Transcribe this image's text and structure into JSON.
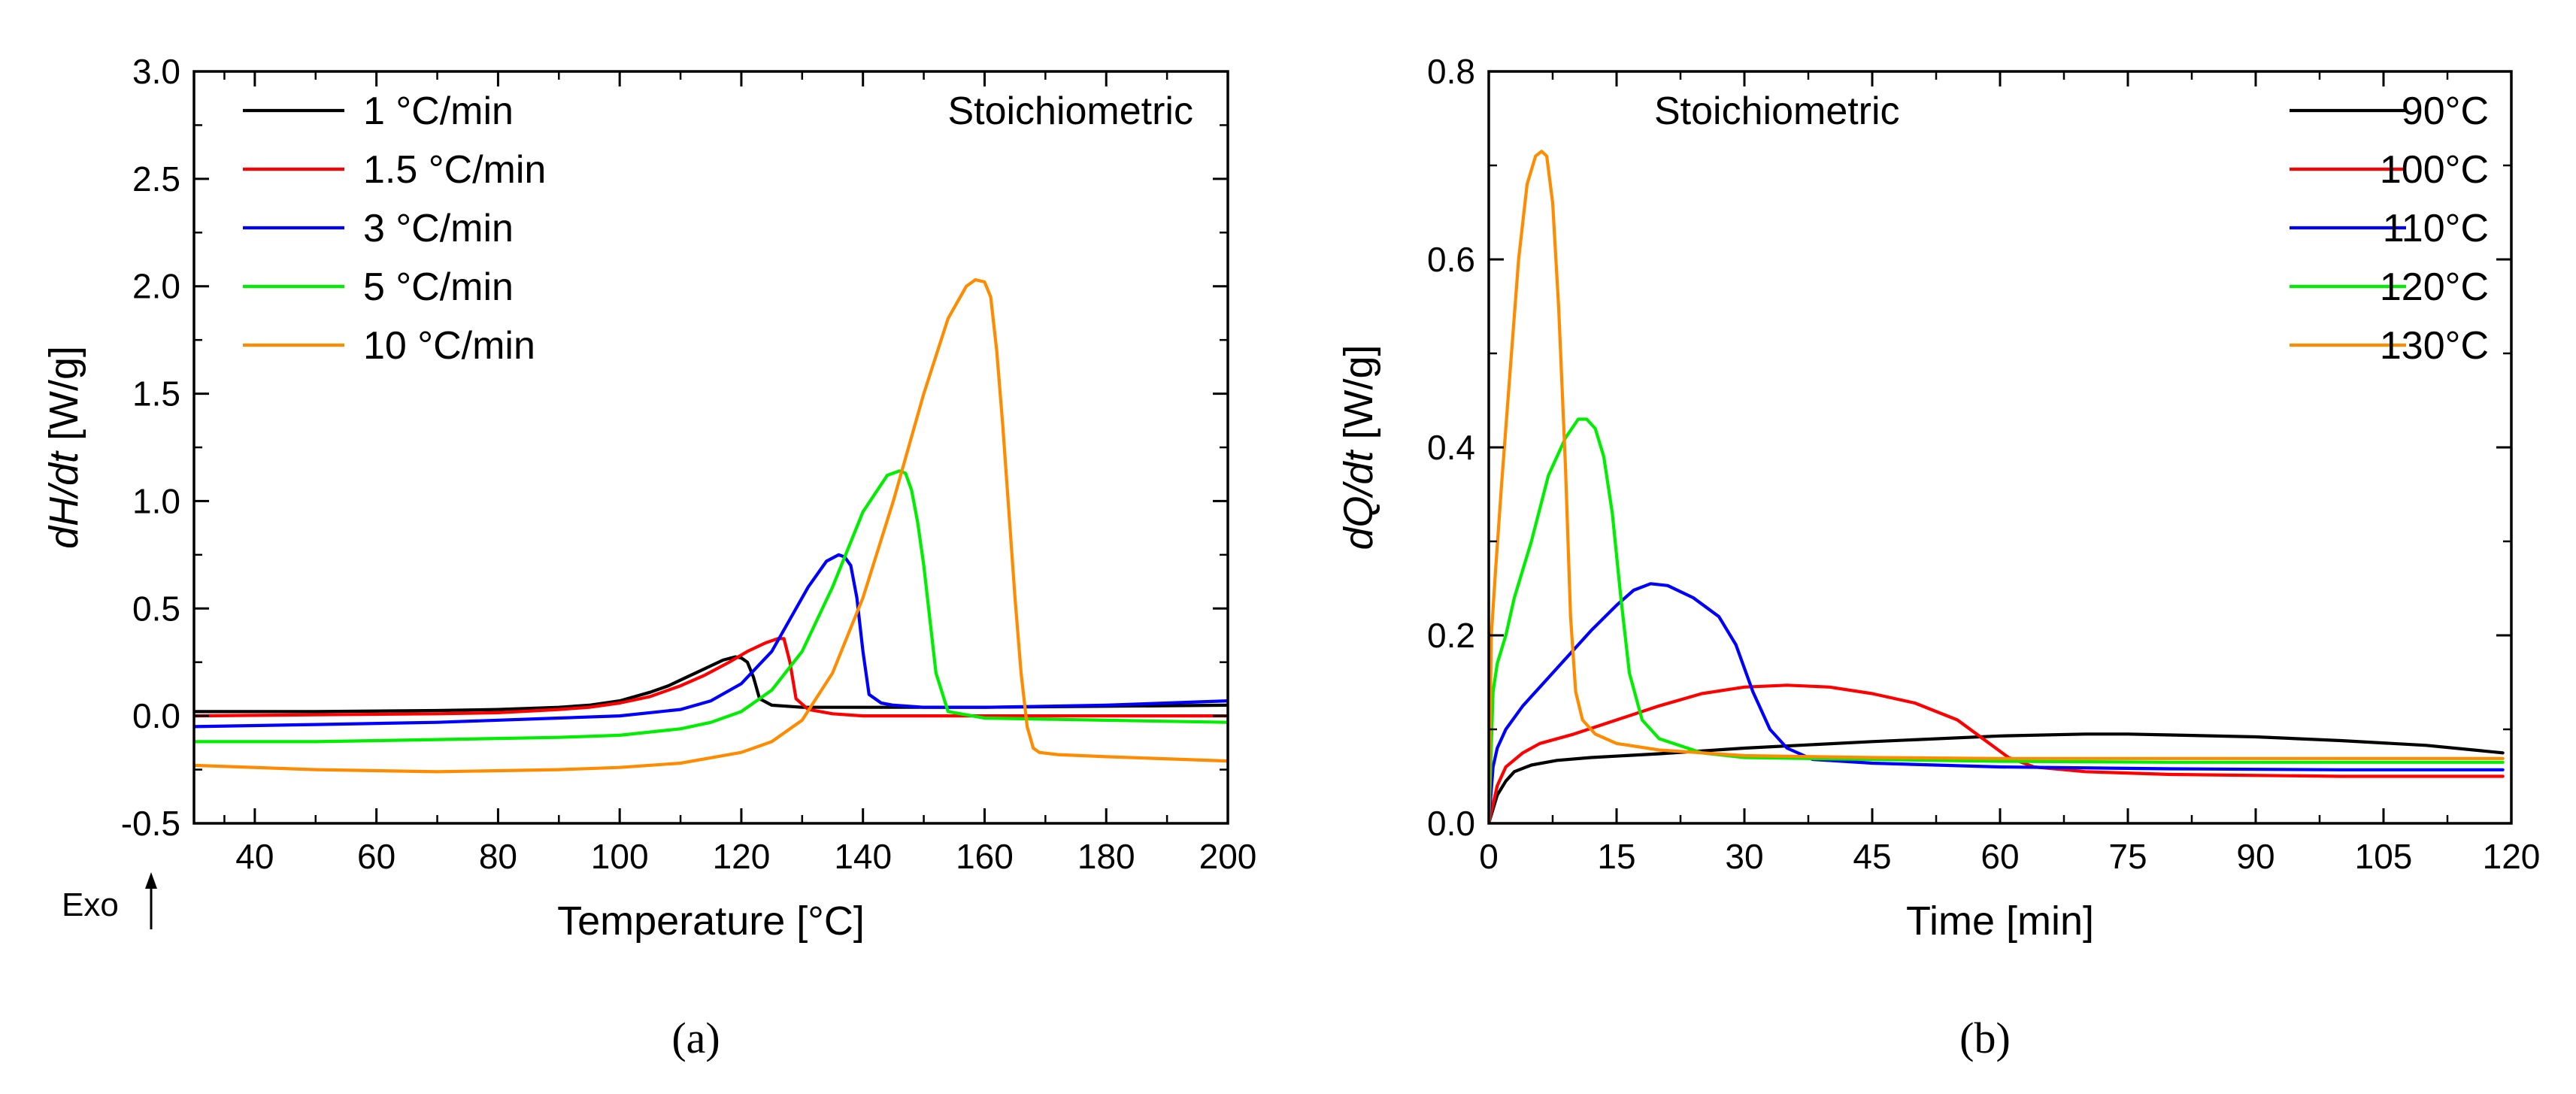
{
  "chart_data": [
    {
      "type": "line",
      "panel_label": "(a)",
      "annotation": "Stoichiometric",
      "legend_position": "top-left",
      "xlabel": "Temperature [°C]",
      "ylabel_parts": [
        {
          "text": "dH/dt",
          "italic": true
        },
        {
          "text": " [W/g]",
          "italic": false
        }
      ],
      "xlim": [
        30,
        200
      ],
      "ylim": [
        -0.5,
        3.0
      ],
      "xticks": [
        40,
        60,
        80,
        100,
        120,
        140,
        160,
        180,
        200
      ],
      "xtick_labels": [
        "40",
        "60",
        "80",
        "100",
        "120",
        "140",
        "160",
        "180",
        "200"
      ],
      "yticks": [
        -0.5,
        0.0,
        0.5,
        1.0,
        1.5,
        2.0,
        2.5,
        3.0
      ],
      "ytick_labels": [
        "-0.5",
        "0.0",
        "0.5",
        "1.0",
        "1.5",
        "2.0",
        "2.5",
        "3.0"
      ],
      "exo_label": "Exo",
      "series": [
        {
          "name": "1 °C/min",
          "color": "#000000",
          "x": [
            30,
            50,
            70,
            80,
            90,
            95,
            100,
            105,
            108,
            111,
            114,
            117,
            119,
            120,
            121,
            122,
            123,
            125,
            130,
            140,
            160,
            180,
            200
          ],
          "y": [
            0.02,
            0.02,
            0.025,
            0.03,
            0.04,
            0.05,
            0.07,
            0.11,
            0.14,
            0.18,
            0.22,
            0.26,
            0.275,
            0.27,
            0.25,
            0.18,
            0.08,
            0.05,
            0.04,
            0.04,
            0.04,
            0.045,
            0.05
          ]
        },
        {
          "name": "1.5 °C/min",
          "color": "#ff0000",
          "x": [
            30,
            50,
            70,
            80,
            90,
            95,
            100,
            105,
            110,
            114,
            118,
            121,
            124,
            126,
            127,
            128,
            129,
            131,
            135,
            140,
            160,
            180,
            200
          ],
          "y": [
            0.0,
            0.005,
            0.01,
            0.015,
            0.03,
            0.04,
            0.06,
            0.09,
            0.14,
            0.19,
            0.25,
            0.3,
            0.34,
            0.36,
            0.36,
            0.25,
            0.08,
            0.03,
            0.01,
            0.0,
            0.0,
            0.0,
            0.0
          ]
        },
        {
          "name": "3 °C/min",
          "color": "#0000ff",
          "x": [
            30,
            50,
            70,
            90,
            100,
            110,
            115,
            120,
            125,
            128,
            131,
            134,
            136,
            137,
            138,
            139,
            140,
            141,
            143,
            145,
            150,
            160,
            180,
            200
          ],
          "y": [
            -0.05,
            -0.04,
            -0.03,
            -0.01,
            0.0,
            0.03,
            0.07,
            0.15,
            0.3,
            0.45,
            0.6,
            0.72,
            0.75,
            0.74,
            0.7,
            0.55,
            0.3,
            0.1,
            0.06,
            0.05,
            0.04,
            0.04,
            0.05,
            0.07
          ]
        },
        {
          "name": "5 °C/min",
          "color": "#00ee00",
          "x": [
            30,
            50,
            70,
            90,
            100,
            110,
            115,
            120,
            125,
            130,
            135,
            140,
            144,
            146,
            147,
            148,
            149,
            150,
            151,
            152,
            154,
            160,
            180,
            200
          ],
          "y": [
            -0.12,
            -0.12,
            -0.11,
            -0.1,
            -0.09,
            -0.06,
            -0.03,
            0.02,
            0.12,
            0.3,
            0.6,
            0.95,
            1.12,
            1.14,
            1.13,
            1.05,
            0.9,
            0.7,
            0.45,
            0.2,
            0.02,
            -0.01,
            -0.02,
            -0.03
          ]
        },
        {
          "name": "10 °C/min",
          "color": "#ff8c00",
          "x": [
            30,
            50,
            70,
            90,
            100,
            110,
            120,
            125,
            130,
            135,
            140,
            145,
            150,
            154,
            157,
            158.5,
            160,
            161,
            162,
            163,
            164,
            165,
            166,
            167,
            168,
            169,
            172,
            180,
            200
          ],
          "y": [
            -0.23,
            -0.25,
            -0.26,
            -0.25,
            -0.24,
            -0.22,
            -0.17,
            -0.12,
            -0.02,
            0.2,
            0.55,
            1.0,
            1.5,
            1.85,
            2.0,
            2.03,
            2.02,
            1.95,
            1.7,
            1.35,
            0.95,
            0.55,
            0.2,
            -0.05,
            -0.15,
            -0.17,
            -0.18,
            -0.19,
            -0.21
          ]
        }
      ]
    },
    {
      "type": "line",
      "panel_label": "(b)",
      "annotation": "Stoichiometric",
      "legend_position": "top-right",
      "xlabel": "Time [min]",
      "ylabel_parts": [
        {
          "text": "dQ/dt",
          "italic": true
        },
        {
          "text": " [W/g]",
          "italic": false
        }
      ],
      "xlim": [
        0,
        120
      ],
      "ylim": [
        0.0,
        0.8
      ],
      "xticks": [
        0,
        15,
        30,
        45,
        60,
        75,
        90,
        105,
        120
      ],
      "xtick_labels": [
        "0",
        "15",
        "30",
        "45",
        "60",
        "75",
        "90",
        "105",
        "120"
      ],
      "yticks": [
        0.0,
        0.2,
        0.4,
        0.6,
        0.8
      ],
      "ytick_labels": [
        "0.0",
        "0.2",
        "0.4",
        "0.6",
        "0.8"
      ],
      "series": [
        {
          "name": "90°C",
          "color": "#000000",
          "x": [
            0,
            1,
            2,
            3,
            5,
            8,
            12,
            20,
            30,
            45,
            60,
            70,
            75,
            80,
            90,
            100,
            110,
            119
          ],
          "y": [
            0.0,
            0.03,
            0.045,
            0.055,
            0.062,
            0.067,
            0.07,
            0.074,
            0.08,
            0.087,
            0.093,
            0.095,
            0.095,
            0.094,
            0.092,
            0.088,
            0.083,
            0.075
          ]
        },
        {
          "name": "100°C",
          "color": "#ff0000",
          "x": [
            0,
            1,
            2,
            4,
            6,
            10,
            15,
            20,
            25,
            30,
            35,
            40,
            45,
            50,
            55,
            58,
            61,
            64,
            70,
            80,
            100,
            119
          ],
          "y": [
            0.0,
            0.04,
            0.06,
            0.075,
            0.085,
            0.095,
            0.11,
            0.125,
            0.138,
            0.145,
            0.147,
            0.145,
            0.138,
            0.128,
            0.11,
            0.09,
            0.07,
            0.06,
            0.055,
            0.052,
            0.05,
            0.05
          ]
        },
        {
          "name": "110°C",
          "color": "#0000ff",
          "x": [
            0,
            0.5,
            1,
            2,
            4,
            6,
            9,
            12,
            15,
            17,
            19,
            21,
            24,
            27,
            29,
            31,
            33,
            35,
            38,
            45,
            60,
            80,
            100,
            119
          ],
          "y": [
            0.0,
            0.06,
            0.08,
            0.1,
            0.125,
            0.145,
            0.175,
            0.205,
            0.232,
            0.248,
            0.255,
            0.253,
            0.24,
            0.22,
            0.19,
            0.14,
            0.1,
            0.08,
            0.068,
            0.064,
            0.06,
            0.058,
            0.057,
            0.057
          ]
        },
        {
          "name": "120°C",
          "color": "#00ee00",
          "x": [
            0,
            0.5,
            1,
            2,
            3,
            5,
            7,
            9,
            10.5,
            11.5,
            12.5,
            13.5,
            14.5,
            15.5,
            16.5,
            18,
            20,
            25,
            30,
            45,
            60,
            80,
            100,
            119
          ],
          "y": [
            0.0,
            0.14,
            0.17,
            0.2,
            0.24,
            0.3,
            0.37,
            0.41,
            0.43,
            0.43,
            0.42,
            0.39,
            0.33,
            0.24,
            0.16,
            0.11,
            0.09,
            0.075,
            0.07,
            0.068,
            0.066,
            0.065,
            0.065,
            0.065
          ]
        },
        {
          "name": "130°C",
          "color": "#ff8c00",
          "x": [
            0,
            0.3,
            0.8,
            1.5,
            2.5,
            3.5,
            4.5,
            5.5,
            6.2,
            6.8,
            7.5,
            8.2,
            9,
            9.6,
            10.2,
            11,
            12.5,
            15,
            20,
            30,
            45,
            60,
            80,
            100,
            119
          ],
          "y": [
            0.0,
            0.2,
            0.27,
            0.36,
            0.48,
            0.6,
            0.68,
            0.71,
            0.715,
            0.71,
            0.66,
            0.55,
            0.38,
            0.22,
            0.14,
            0.11,
            0.095,
            0.085,
            0.078,
            0.072,
            0.07,
            0.069,
            0.069,
            0.069,
            0.069
          ]
        }
      ]
    }
  ]
}
